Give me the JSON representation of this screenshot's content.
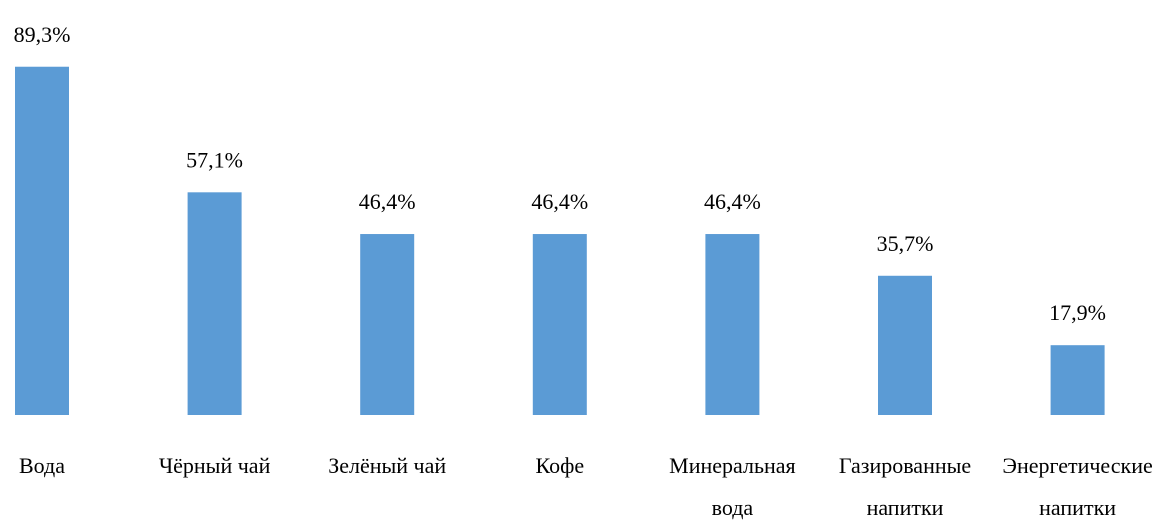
{
  "chart_data": {
    "type": "bar",
    "categories": [
      "Вода",
      "Чёрный чай",
      "Зелёный чай",
      "Кофе",
      "Минеральная\nвода",
      "Газированные\nнапитки",
      "Энергетические\nнапитки"
    ],
    "values": [
      89.3,
      57.1,
      46.4,
      46.4,
      46.4,
      35.7,
      17.9
    ],
    "value_labels": [
      "89,3%",
      "57,1%",
      "46,4%",
      "46,4%",
      "46,4%",
      "35,7%",
      "17,9%"
    ],
    "color": "#5b9bd5"
  }
}
